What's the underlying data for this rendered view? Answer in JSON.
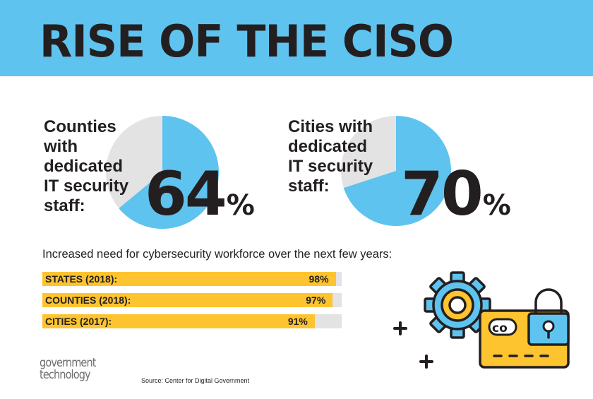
{
  "title": "RISE OF THE CISO",
  "colors": {
    "header_bg": "#5ec3ee",
    "pie_fill": "#5ec3ee",
    "pie_rest": "#e3e3e3",
    "bar_fill": "#fdc42f",
    "bar_track": "#e3e3e3",
    "text": "#231f20"
  },
  "pies": [
    {
      "label": "Counties with dedicated IT security staff:",
      "value_text": "64",
      "pct_symbol": "%",
      "value": 64
    },
    {
      "label": "Cities with dedicated IT security staff:",
      "value_text": "70",
      "pct_symbol": "%",
      "value": 70
    }
  ],
  "subtitle": "Increased need for cybersecurity workforce over the next few years:",
  "chart_data": [
    {
      "type": "pie",
      "title": "Counties with dedicated IT security staff:",
      "values": [
        64,
        36
      ],
      "labels": [
        "64%",
        ""
      ]
    },
    {
      "type": "pie",
      "title": "Cities with dedicated IT security staff:",
      "values": [
        70,
        30
      ],
      "labels": [
        "70%",
        ""
      ]
    },
    {
      "type": "bar",
      "orientation": "horizontal",
      "title": "Increased need for cybersecurity workforce over the next few years:",
      "categories": [
        "STATES (2018):",
        "COUNTIES (2018):",
        "CITIES (2017):"
      ],
      "values": [
        98,
        97,
        91
      ],
      "value_labels": [
        "98%",
        "97%",
        "91%"
      ],
      "xlim": [
        0,
        100
      ]
    }
  ],
  "bars": [
    {
      "label": "STATES (2018):",
      "value_text": "98%",
      "value": 98
    },
    {
      "label": "COUNTIES (2018):",
      "value_text": "97%",
      "value": 97
    },
    {
      "label": "CITIES (2017):",
      "value_text": "91%",
      "value": 91
    }
  ],
  "logo": {
    "line1": "government",
    "line2": "technology"
  },
  "source": "Source: Center for Digital Government",
  "decor": {
    "plus": "+",
    "icons": [
      "gear-icon",
      "credit-card-icon",
      "padlock-icon",
      "plus-icon"
    ]
  }
}
